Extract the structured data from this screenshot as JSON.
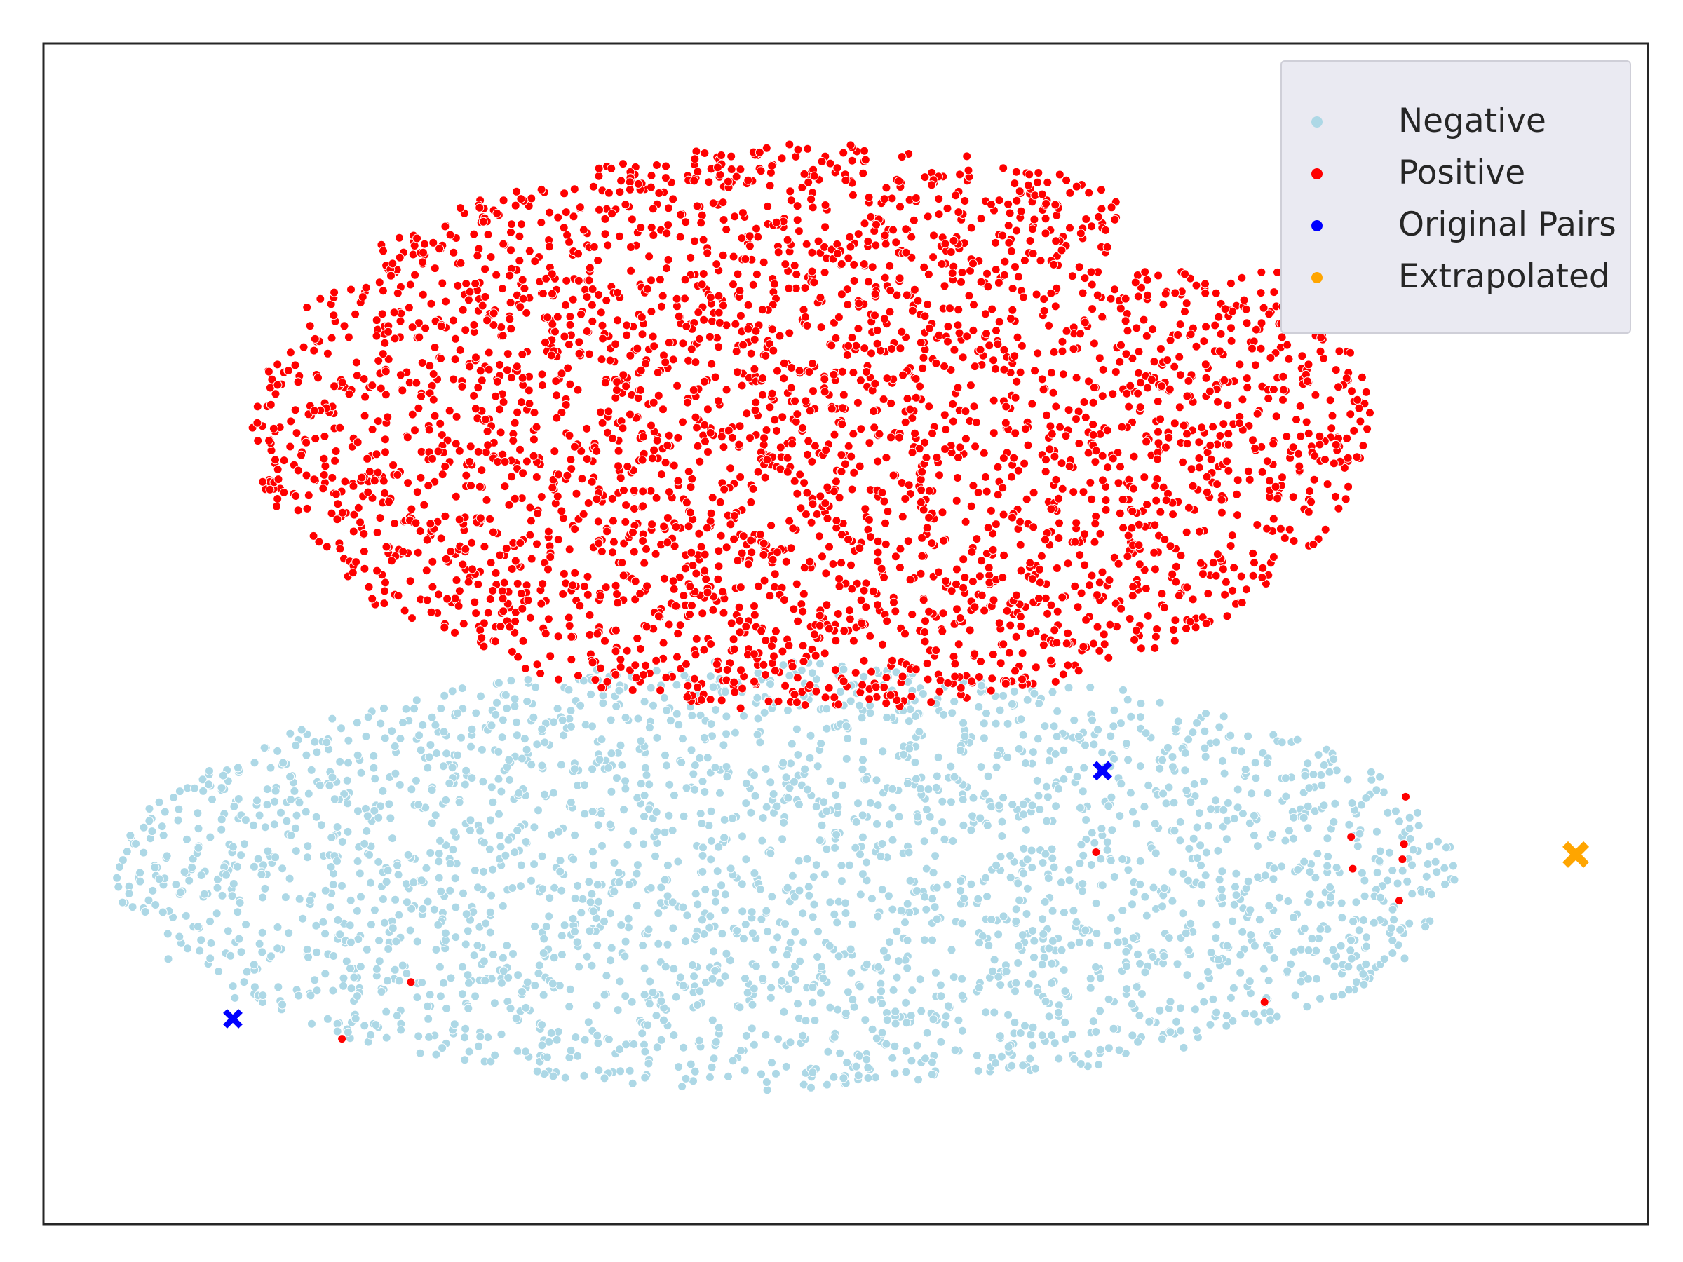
{
  "chart_data": {
    "type": "scatter",
    "title": "",
    "xlabel": "",
    "ylabel": "",
    "ticks_visible": false,
    "grid": false,
    "legend_position": "top-right",
    "xlim": [
      0,
      100
    ],
    "ylim": [
      0,
      100
    ],
    "series": [
      {
        "name": "Negative",
        "color": "#add8e6",
        "marker": "circle",
        "region": {
          "shape": "ellipse",
          "center": [
            46.3,
            29.5
          ],
          "radii": [
            41.8,
            18.2
          ]
        },
        "approx_points": 9000,
        "values": []
      },
      {
        "name": "Positive",
        "color": "#ff0000",
        "marker": "circle",
        "region": {
          "shape": "ellipse",
          "center": [
            47.8,
            67.5
          ],
          "radii": [
            35.0,
            24.0
          ]
        },
        "approx_points": 11000,
        "values": [
          [
            22.9,
            20.5
          ],
          [
            18.6,
            15.7
          ],
          [
            65.6,
            31.5
          ],
          [
            76.1,
            18.8
          ],
          [
            81.5,
            32.8
          ],
          [
            84.9,
            36.2
          ],
          [
            84.8,
            32.2
          ],
          [
            84.7,
            30.9
          ],
          [
            84.5,
            27.4
          ],
          [
            81.6,
            30.1
          ]
        ]
      },
      {
        "name": "Original Pairs",
        "color": "#0000ff",
        "marker": "x",
        "values": [
          [
            66.0,
            38.4
          ],
          [
            11.8,
            17.4
          ]
        ]
      },
      {
        "name": "Extrapolated",
        "color": "#ffa500",
        "marker": "x",
        "values": [
          [
            95.5,
            31.3
          ]
        ]
      }
    ]
  }
}
